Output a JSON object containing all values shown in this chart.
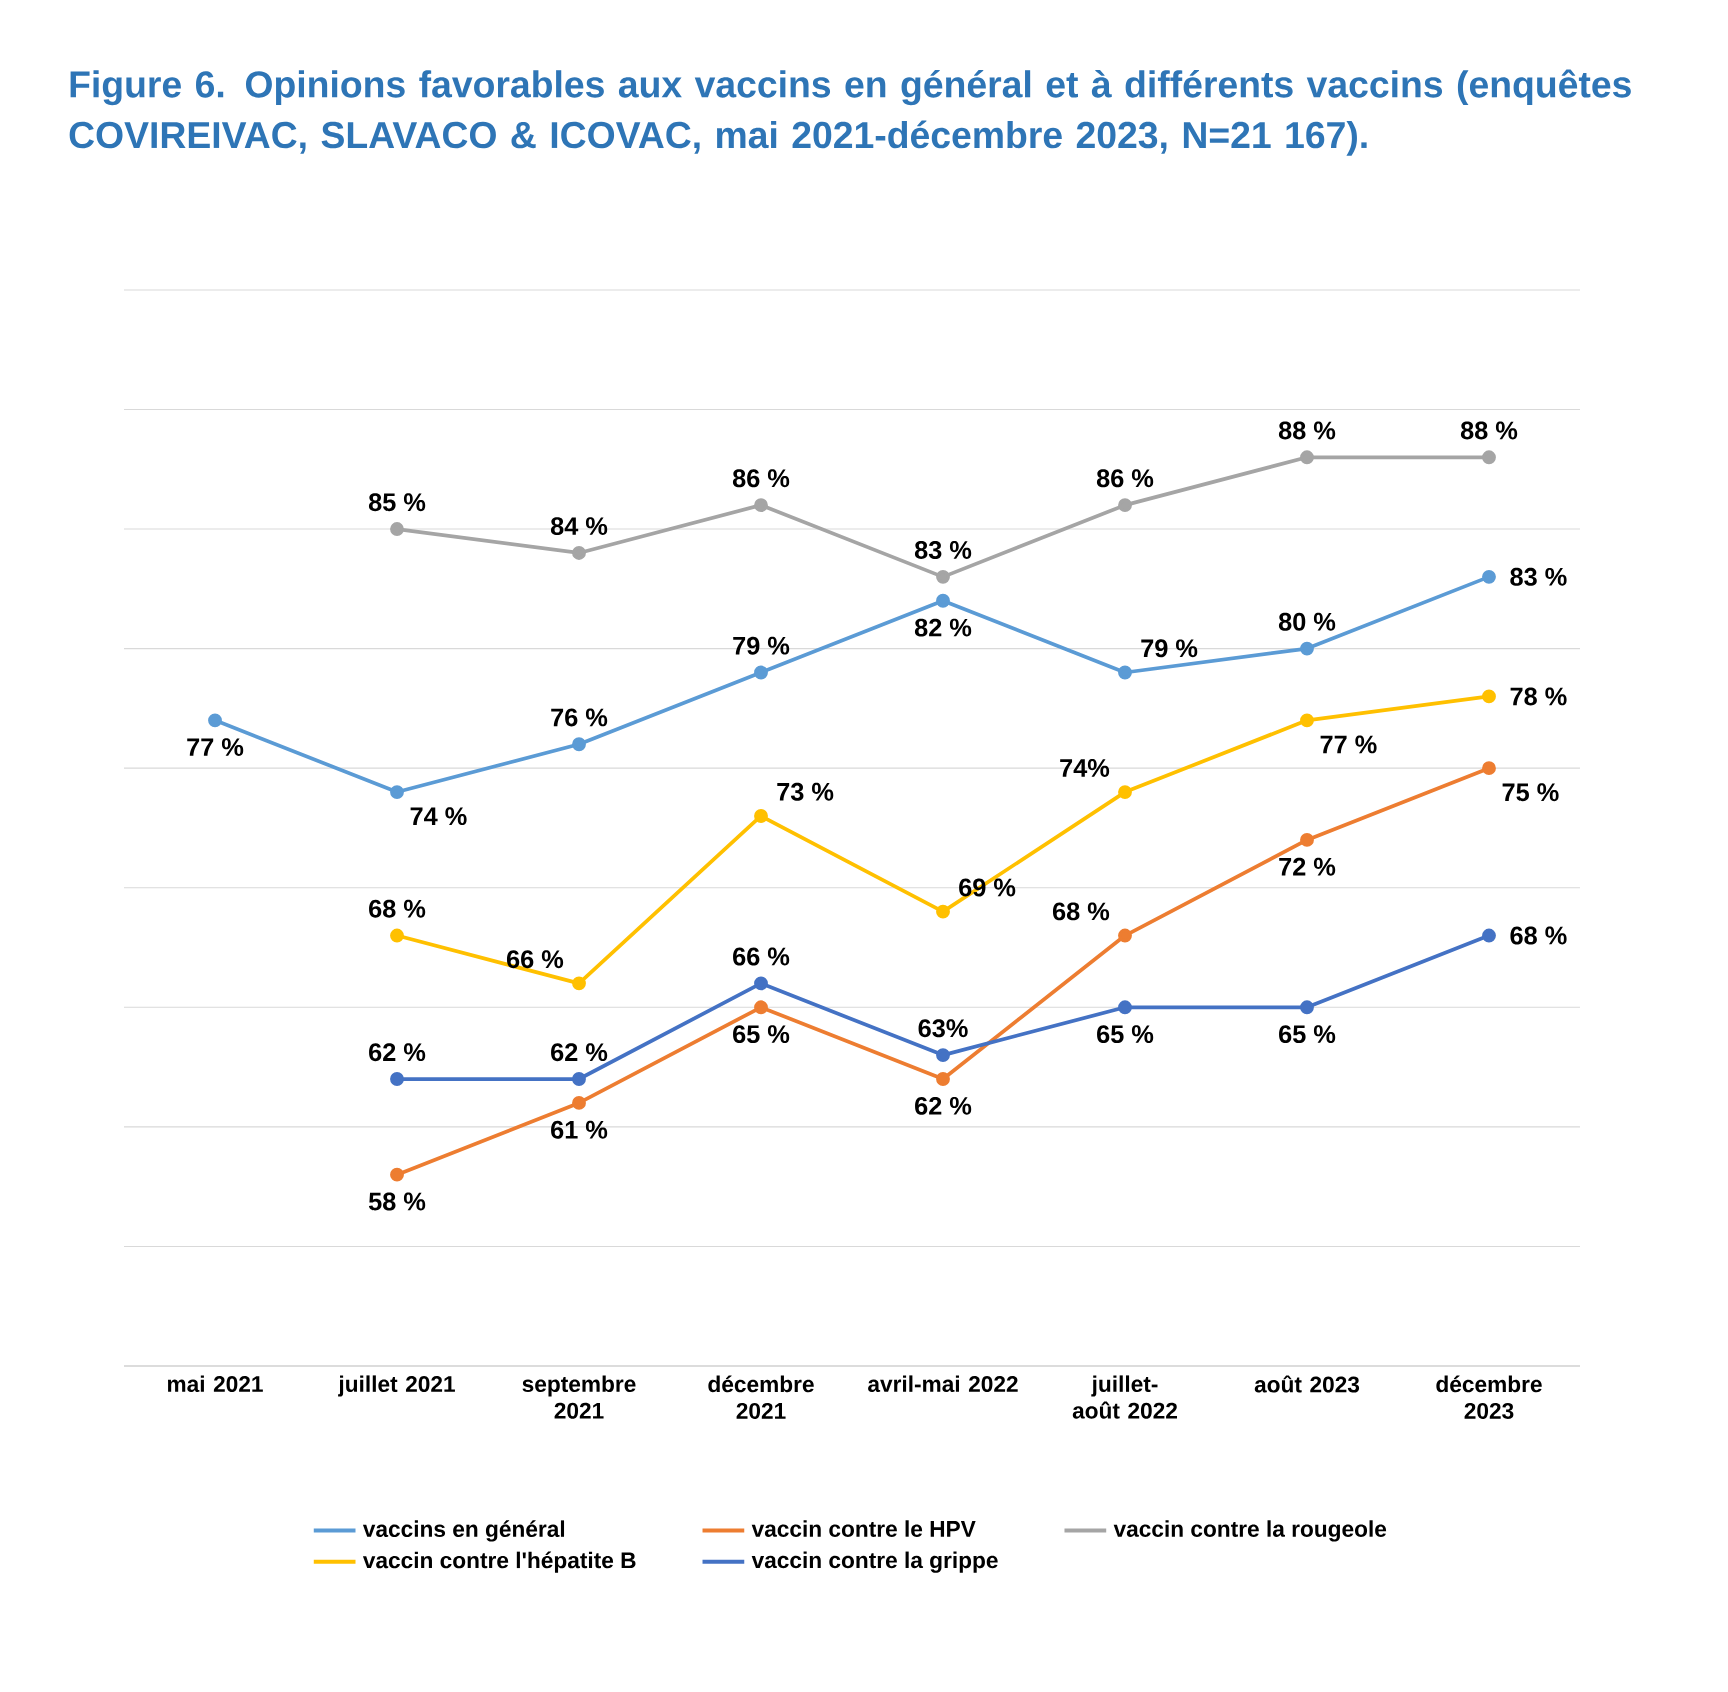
{
  "chart_data": {
    "type": "line",
    "title": "Figure 6. Opinions favorables aux vaccins en général et à différents vaccins (enquêtes COVIREIVAC, SLAVACO & ICOVAC, mai 2021-décembre 2023, N=21 167).",
    "categories": [
      "mai 2021",
      "juillet 2021",
      "septembre 2021",
      "décembre 2021",
      "avril-mai 2022",
      "juillet-août 2022",
      "août 2023",
      "décembre 2023"
    ],
    "series": [
      {
        "name": "vaccins en général",
        "color": "#5b9bd5",
        "values": [
          77,
          74,
          76,
          79,
          82,
          79,
          80,
          83
        ],
        "value_labels": [
          "77 %",
          "74 %",
          "76 %",
          "79 %",
          "82 %",
          "79 %",
          "80 %",
          "83 %"
        ]
      },
      {
        "name": "vaccin contre le HPV",
        "color": "#ed7d31",
        "values": [
          null,
          58,
          61,
          65,
          62,
          68,
          72,
          75
        ],
        "value_labels": [
          null,
          "58 %",
          "61 %",
          "65 %",
          "62 %",
          "68 %",
          "72 %",
          "75 %"
        ]
      },
      {
        "name": "vaccin contre la rougeole",
        "color": "#a5a5a5",
        "values": [
          null,
          85,
          84,
          86,
          83,
          86,
          88,
          88
        ],
        "value_labels": [
          null,
          "85 %",
          "84 %",
          "86 %",
          "83 %",
          "86 %",
          "88 %",
          "88 %"
        ]
      },
      {
        "name": "vaccin contre l'hépatite B",
        "color": "#ffc000",
        "values": [
          null,
          68,
          66,
          73,
          69,
          74,
          77,
          78
        ],
        "value_labels": [
          null,
          "68 %",
          "66 %",
          "73 %",
          "69 %",
          "74%",
          "77 %",
          "78 %"
        ]
      },
      {
        "name": "vaccin contre la grippe",
        "color": "#4472c4",
        "values": [
          null,
          62,
          62,
          66,
          63,
          65,
          65,
          68
        ],
        "value_labels": [
          null,
          "62 %",
          "62 %",
          "66 %",
          "63%",
          "65 %",
          "65 %",
          "68 %"
        ]
      }
    ],
    "grid": "y",
    "legend": "bottom",
    "marker": "circle",
    "line_style": "solid",
    "tick_labels": "x"
  }
}
